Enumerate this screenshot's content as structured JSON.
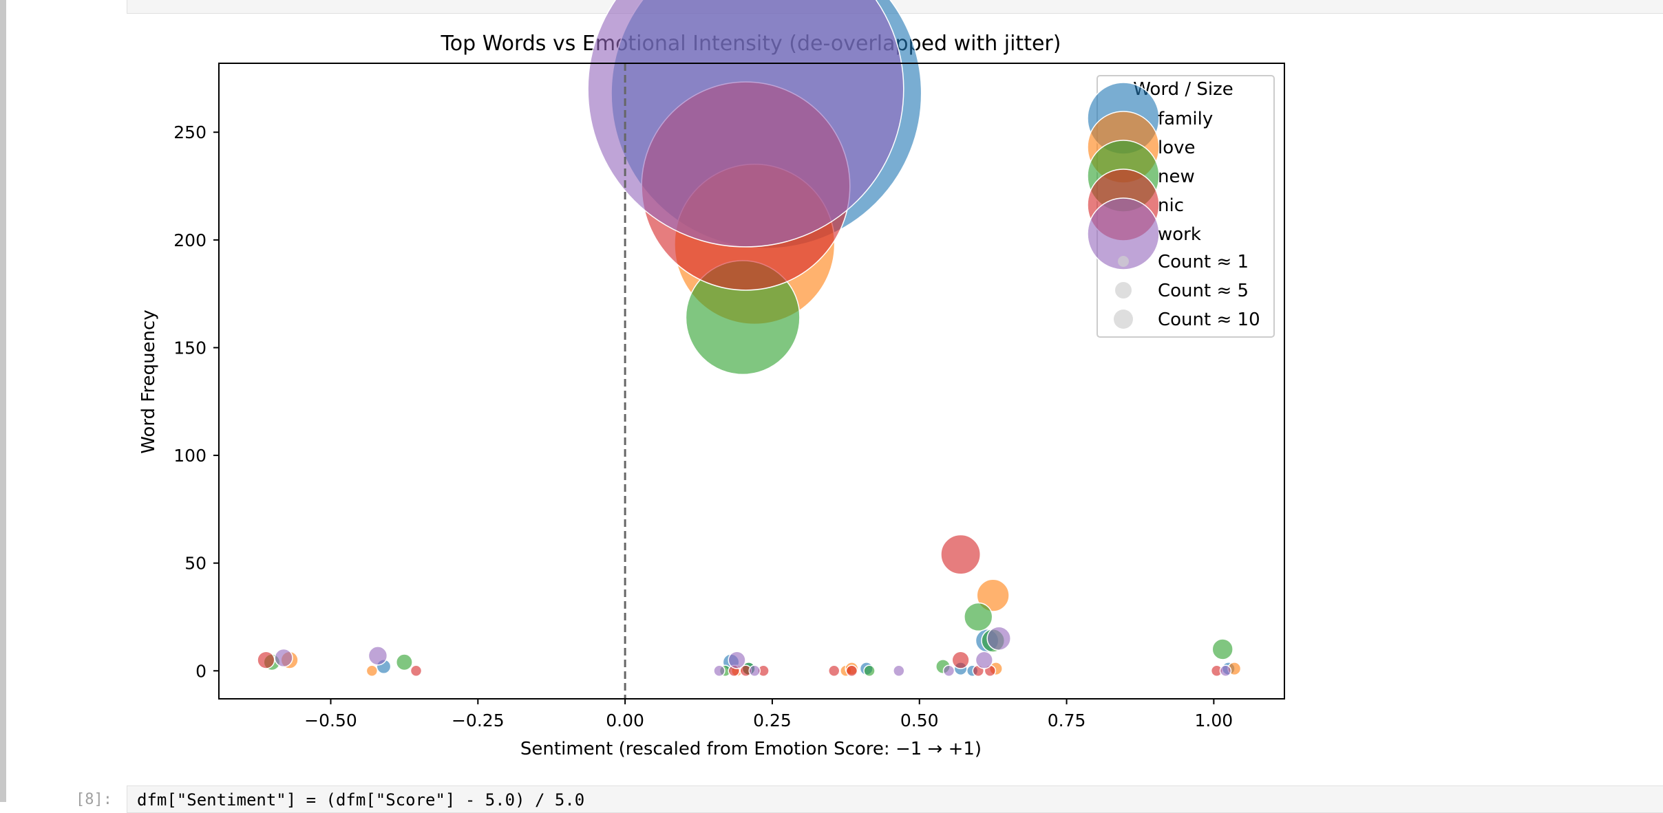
{
  "notebook": {
    "next_cell_prompt": "[8]:",
    "next_cell_code": "dfm[\"Sentiment\"] = (dfm[\"Score\"] - 5.0) / 5.0"
  },
  "chart_data": {
    "type": "scatter",
    "title": "Top Words vs Emotional Intensity (de-overlapped with jitter)",
    "xlabel": "Sentiment (rescaled from Emotion Score: −1 → +1)",
    "ylabel": "Word Frequency",
    "xlim": [
      -0.69,
      1.12
    ],
    "ylim": [
      -13,
      282
    ],
    "zero_line": 0.0,
    "grid": false,
    "xticks": [
      -0.5,
      -0.25,
      0.0,
      0.25,
      0.5,
      0.75,
      1.0
    ],
    "xtick_labels": [
      "−0.50",
      "−0.25",
      "0.00",
      "0.25",
      "0.50",
      "0.75",
      "1.00"
    ],
    "yticks": [
      0,
      50,
      100,
      150,
      200,
      250
    ],
    "ytick_labels": [
      "0",
      "50",
      "100",
      "150",
      "200",
      "250"
    ],
    "legend": {
      "title": "Word / Size",
      "placement": "top-right",
      "words": [
        "family",
        "love",
        "new",
        "nic",
        "work"
      ],
      "size_labels": [
        "Count ≈ 1",
        "Count ≈ 5",
        "Count ≈ 10"
      ]
    },
    "series": [
      {
        "name": "family",
        "color": "#1f77b4",
        "points": [
          {
            "x": 0.24,
            "y": 268
          },
          {
            "x": -0.41,
            "y": 2
          },
          {
            "x": 0.18,
            "y": 4
          },
          {
            "x": 0.21,
            "y": 1
          },
          {
            "x": 0.41,
            "y": 1
          },
          {
            "x": 0.57,
            "y": 1
          },
          {
            "x": 0.59,
            "y": 0
          },
          {
            "x": 0.615,
            "y": 14
          },
          {
            "x": 1.025,
            "y": 1
          }
        ]
      },
      {
        "name": "love",
        "color": "#ff7f0e",
        "points": [
          {
            "x": 0.22,
            "y": 198
          },
          {
            "x": -0.57,
            "y": 5
          },
          {
            "x": -0.43,
            "y": 0
          },
          {
            "x": 0.19,
            "y": 0
          },
          {
            "x": 0.375,
            "y": 0
          },
          {
            "x": 0.385,
            "y": 1
          },
          {
            "x": 0.63,
            "y": 1
          },
          {
            "x": 0.625,
            "y": 35
          },
          {
            "x": 1.035,
            "y": 1
          }
        ]
      },
      {
        "name": "new",
        "color": "#2ca02c",
        "points": [
          {
            "x": 0.2,
            "y": 164
          },
          {
            "x": -0.6,
            "y": 4
          },
          {
            "x": -0.375,
            "y": 4
          },
          {
            "x": 0.17,
            "y": 0
          },
          {
            "x": 0.21,
            "y": 1
          },
          {
            "x": 0.415,
            "y": 0
          },
          {
            "x": 0.54,
            "y": 2
          },
          {
            "x": 0.6,
            "y": 25
          },
          {
            "x": 0.625,
            "y": 14
          },
          {
            "x": 1.015,
            "y": 10
          }
        ]
      },
      {
        "name": "nic",
        "color": "#d62728",
        "points": [
          {
            "x": 0.205,
            "y": 225
          },
          {
            "x": 0.57,
            "y": 54
          },
          {
            "x": -0.61,
            "y": 5
          },
          {
            "x": -0.355,
            "y": 0
          },
          {
            "x": 0.185,
            "y": 0
          },
          {
            "x": 0.205,
            "y": 0
          },
          {
            "x": 0.235,
            "y": 0
          },
          {
            "x": 0.355,
            "y": 0
          },
          {
            "x": 0.385,
            "y": 0
          },
          {
            "x": 0.57,
            "y": 5
          },
          {
            "x": 0.6,
            "y": 0
          },
          {
            "x": 0.62,
            "y": 0
          },
          {
            "x": 1.005,
            "y": 0
          }
        ]
      },
      {
        "name": "work",
        "color": "#9467bd",
        "points": [
          {
            "x": 0.205,
            "y": 270
          },
          {
            "x": -0.58,
            "y": 6
          },
          {
            "x": -0.42,
            "y": 7
          },
          {
            "x": 0.16,
            "y": 0
          },
          {
            "x": 0.19,
            "y": 5
          },
          {
            "x": 0.22,
            "y": 0
          },
          {
            "x": 0.465,
            "y": 0
          },
          {
            "x": 0.55,
            "y": 0
          },
          {
            "x": 0.61,
            "y": 5
          },
          {
            "x": 0.635,
            "y": 15
          },
          {
            "x": 1.02,
            "y": 0
          }
        ]
      }
    ]
  }
}
